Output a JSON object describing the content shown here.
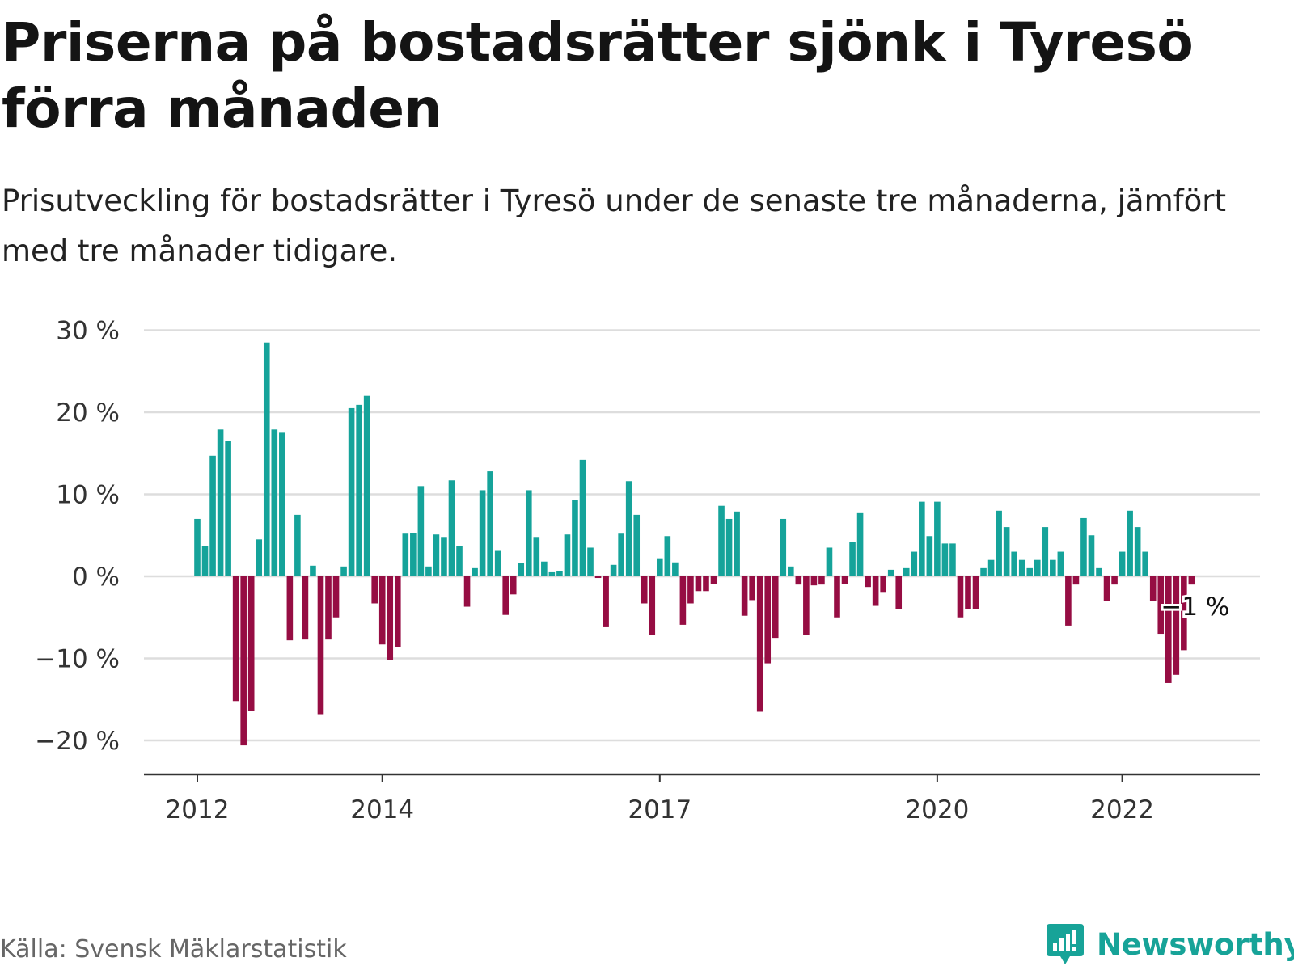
{
  "title": "Priserna på bostadsrätter sjönk i Tyresö förra månaden",
  "subtitle": "Prisutveckling för bostadsrätter i Tyresö under de senaste tre månaderna, jämfört med tre månader tidigare.",
  "source": "Källa: Svensk Mäklarstatistik",
  "brand": {
    "name": "Newsworthy",
    "icon": "newsworthy-logo-icon",
    "color": "#17a398"
  },
  "colors": {
    "positive": "#15a39a",
    "negative": "#960d43",
    "grid": "#dddddd",
    "axis": "#333333"
  },
  "chart_data": {
    "type": "bar",
    "title": "",
    "xlabel": "",
    "ylabel": "",
    "unit": "%",
    "ylim": [
      -24,
      30
    ],
    "grid": true,
    "y_ticks": [
      30,
      20,
      10,
      0,
      -10,
      -20
    ],
    "y_tick_labels": [
      "30 %",
      "20 %",
      "10 %",
      "0 %",
      "−10 %",
      "−20 %"
    ],
    "x_ticks": [
      {
        "label": "2012",
        "date": "2012-01"
      },
      {
        "label": "2014",
        "date": "2014-01"
      },
      {
        "label": "2017",
        "date": "2017-01"
      },
      {
        "label": "2020",
        "date": "2020-01"
      },
      {
        "label": "2022",
        "date": "2022-01"
      }
    ],
    "start_date": "2012-01",
    "values": [
      7,
      3.7,
      14.7,
      17.9,
      16.5,
      -15.2,
      -20.6,
      -16.4,
      4.5,
      28.5,
      17.9,
      17.5,
      -7.8,
      7.5,
      -7.7,
      1.3,
      -16.8,
      -7.7,
      -5,
      1.2,
      20.5,
      20.9,
      22,
      -3.3,
      -8.3,
      -10.2,
      -8.6,
      5.2,
      5.3,
      11,
      1.2,
      5.1,
      4.8,
      11.7,
      3.7,
      -3.7,
      1,
      10.5,
      12.8,
      3.1,
      -4.7,
      -2.2,
      1.6,
      10.5,
      4.8,
      1.8,
      0.5,
      0.6,
      5.1,
      9.3,
      14.2,
      3.5,
      -0.2,
      -6.2,
      1.4,
      5.2,
      11.6,
      7.5,
      -3.3,
      -7.1,
      2.2,
      4.9,
      1.7,
      -5.9,
      -3.3,
      -1.8,
      -1.8,
      -0.9,
      8.6,
      7,
      7.9,
      -4.8,
      -2.9,
      -16.5,
      -10.6,
      -7.5,
      7,
      1.2,
      -1,
      -7.1,
      -1.1,
      -1,
      3.5,
      -5,
      -0.9,
      4.2,
      7.7,
      -1.3,
      -3.6,
      -1.9,
      0.8,
      -4,
      1,
      3,
      9.1,
      4.9,
      9.1,
      4,
      4,
      -5,
      -4,
      -4,
      1,
      2,
      8,
      6,
      3,
      2,
      1,
      2,
      6,
      2,
      3,
      -6,
      -1,
      7.1,
      5,
      1,
      -3,
      -1,
      3,
      8,
      6,
      3,
      -3,
      -7,
      -13,
      -12,
      -9,
      -1
    ],
    "end_label": "−1 %"
  }
}
